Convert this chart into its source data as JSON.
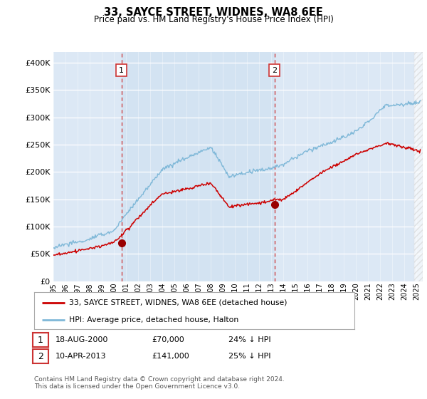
{
  "title": "33, SAYCE STREET, WIDNES, WA8 6EE",
  "subtitle": "Price paid vs. HM Land Registry's House Price Index (HPI)",
  "ytick_values": [
    0,
    50000,
    100000,
    150000,
    200000,
    250000,
    300000,
    350000,
    400000
  ],
  "ylim": [
    0,
    420000
  ],
  "xlim_start": 1995.0,
  "xlim_end": 2025.5,
  "hpi_color": "#7fb8d8",
  "price_color": "#cc0000",
  "shade_color": "#d8e8f5",
  "marker1_year": 2000.62,
  "marker1_price": 70000,
  "marker1_label": "1",
  "marker1_date": "18-AUG-2000",
  "marker1_amount": "£70,000",
  "marker1_hpi": "24% ↓ HPI",
  "marker2_year": 2013.27,
  "marker2_price": 141000,
  "marker2_label": "2",
  "marker2_date": "10-APR-2013",
  "marker2_amount": "£141,000",
  "marker2_hpi": "25% ↓ HPI",
  "legend_line1": "33, SAYCE STREET, WIDNES, WA8 6EE (detached house)",
  "legend_line2": "HPI: Average price, detached house, Halton",
  "footnote": "Contains HM Land Registry data © Crown copyright and database right 2024.\nThis data is licensed under the Open Government Licence v3.0.",
  "bg_color": "#dce8f5",
  "plot_bg_color": "#dce8f5"
}
